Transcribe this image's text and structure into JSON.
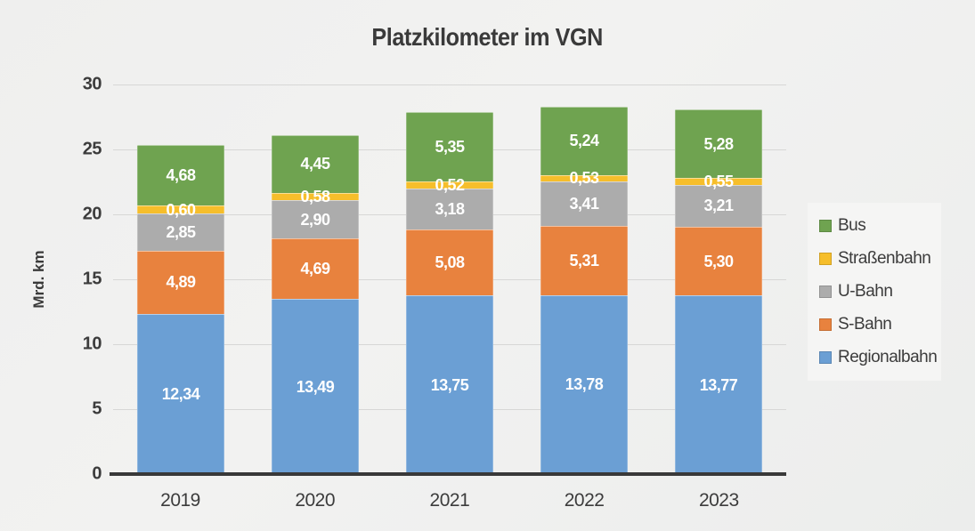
{
  "chart_data": {
    "type": "bar",
    "stacked": true,
    "title": "Platzkilometer im VGN",
    "ylabel": "Mrd. km",
    "ylim": [
      0,
      30
    ],
    "yticks": [
      0,
      5,
      10,
      15,
      20,
      25,
      30
    ],
    "grid": true,
    "categories": [
      "2019",
      "2020",
      "2021",
      "2022",
      "2023"
    ],
    "series": [
      {
        "name": "Regionalbahn",
        "color": "#6b9fd4",
        "values": [
          12.34,
          13.49,
          13.75,
          13.78,
          13.77
        ],
        "labels": [
          "12,34",
          "13,49",
          "13,75",
          "13,78",
          "13,77"
        ]
      },
      {
        "name": "S-Bahn",
        "color": "#e8823e",
        "values": [
          4.89,
          4.69,
          5.08,
          5.31,
          5.3
        ],
        "labels": [
          "4,89",
          "4,69",
          "5,08",
          "5,31",
          "5,30"
        ]
      },
      {
        "name": "U-Bahn",
        "color": "#acacac",
        "values": [
          2.85,
          2.9,
          3.18,
          3.41,
          3.21
        ],
        "labels": [
          "2,85",
          "2,90",
          "3,18",
          "3,41",
          "3,21"
        ]
      },
      {
        "name": "Straßenbahn",
        "color": "#f6be2b",
        "values": [
          0.6,
          0.58,
          0.52,
          0.53,
          0.55
        ],
        "labels": [
          "0,60",
          "0,58",
          "0,52",
          "0,53",
          "0,55"
        ]
      },
      {
        "name": "Bus",
        "color": "#6fa350",
        "values": [
          4.68,
          4.45,
          5.35,
          5.24,
          5.28
        ],
        "labels": [
          "4,68",
          "4,45",
          "5,35",
          "5,24",
          "5,28"
        ]
      }
    ],
    "legend": {
      "position": "right",
      "items_top_to_bottom": [
        "Bus",
        "Straßenbahn",
        "U-Bahn",
        "S-Bahn",
        "Regionalbahn"
      ]
    },
    "colors": {
      "axis_line": "#393939",
      "grid_line": "#d7d7d6",
      "text": "#3a3a3a",
      "value_label": "#ffffff"
    }
  }
}
